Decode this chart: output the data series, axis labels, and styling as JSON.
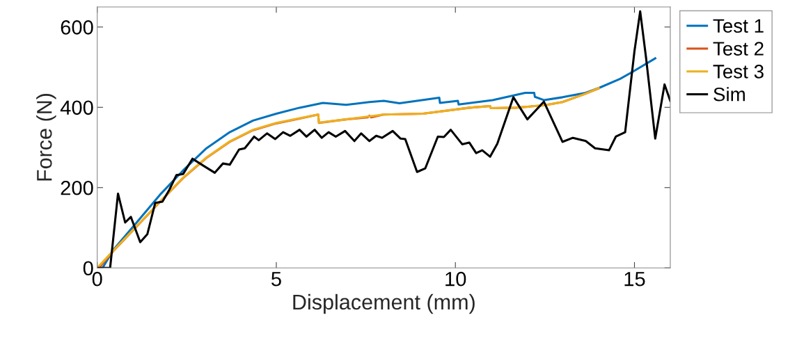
{
  "chart_data": {
    "type": "line",
    "xlabel": "Displacement (mm)",
    "ylabel": "Force (N)",
    "xlim": [
      0,
      16
    ],
    "xticks": [
      0,
      5,
      10,
      15
    ],
    "ylim": [
      0,
      650
    ],
    "yticks": [
      0,
      200,
      400,
      600
    ],
    "grid": false,
    "legend": "top right",
    "marker": "none",
    "line_style": "solid",
    "series": [
      {
        "name": "Test 1",
        "color": "#0072bd",
        "x": [
          0.15,
          0.45,
          1.1,
          1.75,
          2.4,
          3.05,
          3.7,
          4.35,
          5.0,
          5.65,
          6.3,
          6.95,
          7.6,
          8.0,
          8.44,
          9.55,
          9.57,
          10.07,
          10.09,
          11.04,
          11.95,
          12.2,
          12.22,
          12.47,
          12.99,
          13.64,
          14.03,
          14.6,
          14.94,
          15.58
        ],
        "values": [
          0,
          45,
          113,
          182,
          243,
          298,
          338,
          367,
          384,
          399,
          411,
          406,
          413,
          416,
          410,
          424,
          411,
          416,
          407,
          418,
          436,
          436,
          426,
          418,
          425,
          436,
          449,
          471,
          488,
          522
        ]
      },
      {
        "name": "Test 2",
        "color": "#d95319",
        "x": [
          0.05,
          0.45,
          1.1,
          1.75,
          2.4,
          3.05,
          3.7,
          4.35,
          5.0,
          5.65,
          6.17,
          6.19,
          6.95,
          7.55,
          7.6,
          7.65,
          7.99,
          9.09,
          10.4,
          10.97,
          10.99,
          11.69,
          12.47,
          12.99,
          13.64,
          14.0
        ],
        "values": [
          0,
          42,
          103,
          164,
          224,
          274,
          314,
          343,
          360,
          372,
          382,
          361,
          370,
          375,
          379,
          375,
          382,
          384,
          399,
          403,
          398,
          399,
          405,
          413,
          434,
          447
        ]
      },
      {
        "name": "Test 3",
        "color": "#edb120",
        "x": [
          0,
          0.45,
          1.1,
          1.75,
          2.4,
          3.05,
          3.7,
          4.35,
          5.0,
          5.65,
          6.17,
          6.19,
          6.95,
          7.99,
          9.09,
          10.4,
          10.97,
          10.99,
          11.69,
          12.47,
          12.99,
          13.64,
          14.0
        ],
        "values": [
          0,
          43,
          104,
          165,
          225,
          275,
          315,
          344,
          361,
          373,
          382,
          362,
          370,
          382,
          384,
          399,
          403,
          398,
          399,
          405,
          413,
          434,
          448
        ]
      },
      {
        "name": "Sim",
        "color": "#000000",
        "x": [
          0,
          0.36,
          0.58,
          0.78,
          0.94,
          1.2,
          1.4,
          1.62,
          1.82,
          2.01,
          2.21,
          2.4,
          2.66,
          2.92,
          3.28,
          3.51,
          3.7,
          3.96,
          4.12,
          4.38,
          4.51,
          4.74,
          4.97,
          5.19,
          5.39,
          5.65,
          5.84,
          6.07,
          6.27,
          6.46,
          6.66,
          6.92,
          7.18,
          7.37,
          7.6,
          7.79,
          7.95,
          8.25,
          8.47,
          8.6,
          8.93,
          9.16,
          9.51,
          9.68,
          9.87,
          10.19,
          10.39,
          10.58,
          10.75,
          10.97,
          11.17,
          11.62,
          12.01,
          12.47,
          12.99,
          13.28,
          13.64,
          13.9,
          14.29,
          14.48,
          14.74,
          15.0,
          15.16,
          15.32,
          15.58,
          15.84,
          16.0
        ],
        "values": [
          0,
          0,
          185,
          113,
          127,
          64,
          84,
          162,
          165,
          194,
          231,
          234,
          272,
          257,
          237,
          260,
          257,
          295,
          298,
          327,
          318,
          335,
          321,
          338,
          329,
          344,
          327,
          344,
          324,
          338,
          327,
          341,
          316,
          335,
          316,
          329,
          324,
          341,
          322,
          321,
          239,
          248,
          327,
          326,
          344,
          308,
          312,
          286,
          293,
          277,
          309,
          425,
          370,
          414,
          314,
          324,
          316,
          298,
          293,
          327,
          338,
          540,
          639,
          526,
          322,
          457,
          416
        ]
      }
    ]
  }
}
